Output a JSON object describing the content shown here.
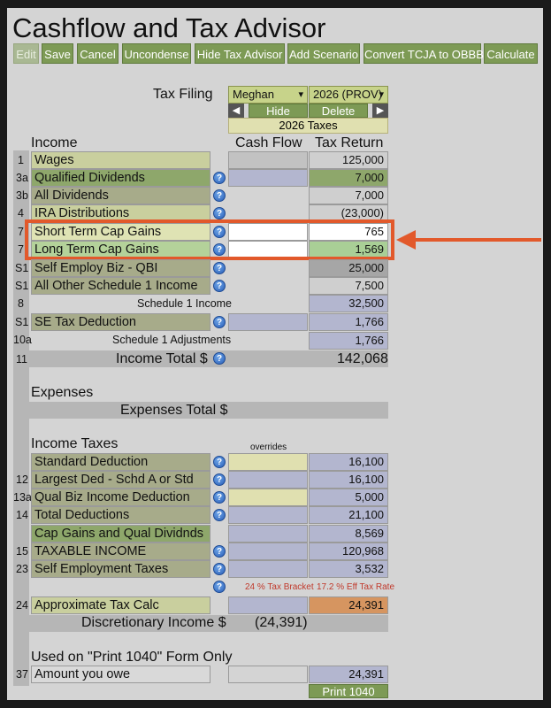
{
  "app": {
    "title": "Cashflow and Tax Advisor"
  },
  "toolbar": {
    "edit": "Edit",
    "save": "Save",
    "cancel": "Cancel",
    "uncondense": "Uncondense",
    "hide_tax_advisor": "Hide Tax Advisor",
    "add_scenario": "Add Scenario",
    "convert": "Convert TCJA to OBBB",
    "calculate": "Calculate"
  },
  "filing": {
    "label": "Tax Filing",
    "person": "Meghan",
    "year": "2026 (PROV)",
    "hide": "Hide",
    "delete": "Delete",
    "taxes_header": "2026 Taxes"
  },
  "columns": {
    "cash_flow": "Cash Flow",
    "tax_return": "Tax Return",
    "overrides": "overrides"
  },
  "income": {
    "heading": "Income",
    "rows": [
      {
        "line": "1",
        "label": "Wages",
        "tax_return": "125,000"
      },
      {
        "line": "3a",
        "label": "Qualified Dividends",
        "tax_return": "7,000"
      },
      {
        "line": "3b",
        "label": "All Dividends",
        "tax_return": "7,000"
      },
      {
        "line": "4",
        "label": "IRA Distributions",
        "tax_return": "(23,000)"
      },
      {
        "line": "7",
        "label": "Short Term Cap Gains",
        "tax_return": "765"
      },
      {
        "line": "7",
        "label": "Long Term Cap Gains",
        "tax_return": "1,569"
      },
      {
        "line": "S1",
        "label": "Self Employ Biz - QBI",
        "tax_return": "25,000"
      },
      {
        "line": "S1",
        "label": "All Other Schedule 1 Income",
        "tax_return": "7,500"
      },
      {
        "line": "8",
        "label": "Schedule 1 Income",
        "tax_return": "32,500"
      },
      {
        "line": "S1",
        "label": "SE Tax Deduction",
        "tax_return": "1,766"
      },
      {
        "line": "10a",
        "label": "Schedule 1 Adjustments",
        "tax_return": "1,766"
      }
    ],
    "total_line": "11",
    "total_label": "Income Total $",
    "total_value": "142,068"
  },
  "expenses": {
    "heading": "Expenses",
    "total_label": "Expenses Total $"
  },
  "income_taxes": {
    "heading": "Income Taxes",
    "rows": [
      {
        "line": "",
        "label": "Standard Deduction",
        "tax_return": "16,100"
      },
      {
        "line": "12",
        "label": "Largest Ded - Schd A or Std",
        "tax_return": "16,100"
      },
      {
        "line": "13a",
        "label": "Qual Biz Income Deduction",
        "tax_return": "5,000"
      },
      {
        "line": "14",
        "label": "Total Deductions",
        "tax_return": "21,100"
      },
      {
        "line": "",
        "label": "Cap Gains and Qual Dividnds",
        "tax_return": "8,569"
      },
      {
        "line": "15",
        "label": "TAXABLE INCOME",
        "tax_return": "120,968"
      },
      {
        "line": "23",
        "label": "Self Employment Taxes",
        "tax_return": "3,532"
      }
    ],
    "bracket": "24 % Tax Bracket",
    "eff_rate": "17.2 % Eff Tax Rate",
    "approx_line": "24",
    "approx_label": "Approximate Tax Calc",
    "approx_value": "24,391",
    "discretionary_label": "Discretionary Income $",
    "discretionary_value": "(24,391)"
  },
  "print1040": {
    "heading": "Used on \"Print 1040\" Form Only",
    "line": "37",
    "label": "Amount you owe",
    "value": "24,391",
    "button": "Print 1040"
  },
  "icons": {
    "help": "?",
    "left_arrow": "◀",
    "right_arrow": "▶",
    "caret": "▾"
  },
  "colors": {
    "highlight_border": "#e2592b",
    "button_green": "#7d9a55",
    "label_tan": "#c9cf9e",
    "label_green": "#8ea76b",
    "label_gray": "#a7ab9a",
    "cell_blue": "#b3b6cf",
    "cell_peach": "#d69560"
  }
}
